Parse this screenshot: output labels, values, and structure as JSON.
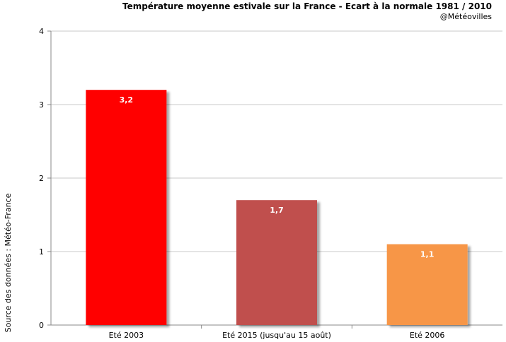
{
  "chart_data": {
    "type": "bar",
    "title": "Température moyenne estivale sur la France - Ecart à la normale 1981 / 2010",
    "subtitle": "@Météovilles",
    "ylabel": "Source des données : Météo-France",
    "xlabel": "",
    "categories": [
      "Eté 2003",
      "Eté 2015 (jusqu'au 15 août)",
      "Eté 2006"
    ],
    "values": [
      3.2,
      1.7,
      1.1
    ],
    "value_labels": [
      "3,2",
      "1,7",
      "1,1"
    ],
    "bar_colors": [
      "#ff0000",
      "#c0504d",
      "#f79646"
    ],
    "ylim": [
      0,
      4
    ],
    "yticks": [
      0,
      1,
      2,
      3,
      4
    ],
    "ytick_labels": [
      "0",
      "1",
      "2",
      "3",
      "4"
    ],
    "grid": true,
    "legend": "none"
  }
}
